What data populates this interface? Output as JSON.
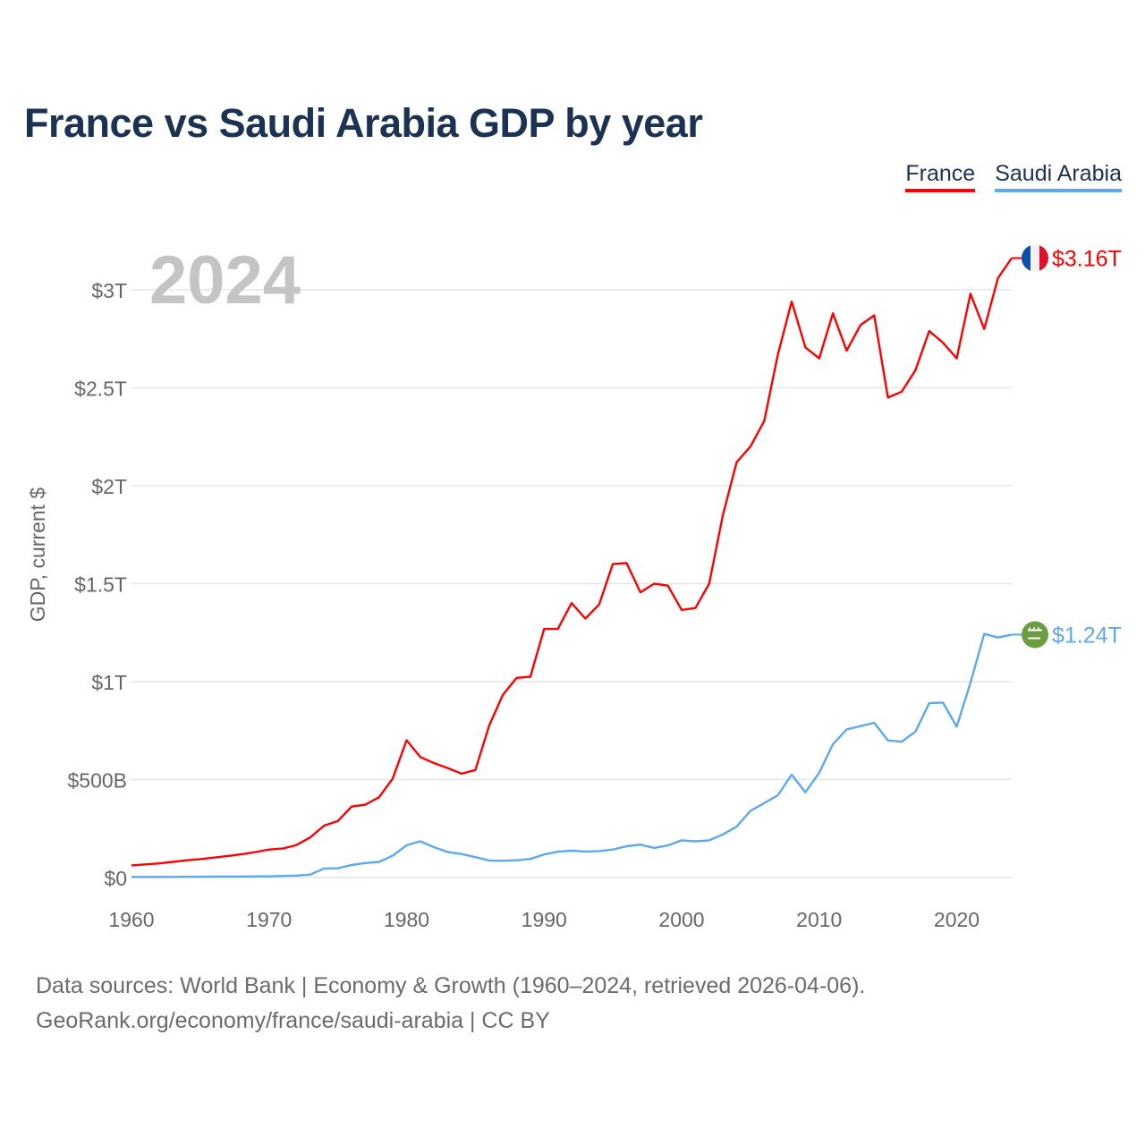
{
  "chart_data": {
    "type": "line",
    "title": "France vs Saudi Arabia GDP by year",
    "ylabel": "GDP, current $",
    "xlabel": "",
    "year_label": "2024",
    "xlim": [
      1960,
      2024
    ],
    "ylim": [
      0,
      3.3
    ],
    "y_unit": "trillion USD",
    "grid": true,
    "legend_position": "top-right",
    "x_ticks": [
      1960,
      1970,
      1980,
      1990,
      2000,
      2010,
      2020
    ],
    "x_tick_labels": [
      "1960",
      "1970",
      "1980",
      "1990",
      "2000",
      "2010",
      "2020"
    ],
    "y_ticks": [
      0,
      0.5,
      1,
      1.5,
      2,
      2.5,
      3
    ],
    "y_tick_labels": [
      "$0",
      "$500B",
      "$1T",
      "$1.5T",
      "$2T",
      "$2.5T",
      "$3T"
    ],
    "x": [
      1960,
      1961,
      1962,
      1963,
      1964,
      1965,
      1966,
      1967,
      1968,
      1969,
      1970,
      1971,
      1972,
      1973,
      1974,
      1975,
      1976,
      1977,
      1978,
      1979,
      1980,
      1981,
      1982,
      1983,
      1984,
      1985,
      1986,
      1987,
      1988,
      1989,
      1990,
      1991,
      1992,
      1993,
      1994,
      1995,
      1996,
      1997,
      1998,
      1999,
      2000,
      2001,
      2002,
      2003,
      2004,
      2005,
      2006,
      2007,
      2008,
      2009,
      2010,
      2011,
      2012,
      2013,
      2014,
      2015,
      2016,
      2017,
      2018,
      2019,
      2020,
      2021,
      2022,
      2023,
      2024
    ],
    "series": [
      {
        "name": "France",
        "color": "#ff0000",
        "end_label": "$3.16T",
        "values": [
          0.062,
          0.067,
          0.072,
          0.08,
          0.088,
          0.094,
          0.102,
          0.11,
          0.119,
          0.13,
          0.143,
          0.148,
          0.166,
          0.205,
          0.265,
          0.288,
          0.362,
          0.372,
          0.41,
          0.506,
          0.701,
          0.615,
          0.584,
          0.559,
          0.53,
          0.549,
          0.775,
          0.932,
          1.019,
          1.025,
          1.269,
          1.269,
          1.401,
          1.322,
          1.394,
          1.601,
          1.605,
          1.456,
          1.5,
          1.49,
          1.366,
          1.376,
          1.5,
          1.85,
          2.12,
          2.2,
          2.33,
          2.67,
          2.94,
          2.706,
          2.65,
          2.88,
          2.69,
          2.82,
          2.87,
          2.45,
          2.48,
          2.59,
          2.79,
          2.73,
          2.65,
          2.98,
          2.8,
          3.06,
          3.162
        ]
      },
      {
        "name": "Saudi Arabia",
        "color": "#5ea8ec",
        "end_label": "$1.24T",
        "values": [
          0.003,
          0.003,
          0.003,
          0.003,
          0.004,
          0.004,
          0.005,
          0.005,
          0.005,
          0.006,
          0.006,
          0.008,
          0.01,
          0.015,
          0.046,
          0.047,
          0.064,
          0.074,
          0.08,
          0.112,
          0.165,
          0.185,
          0.155,
          0.13,
          0.12,
          0.104,
          0.087,
          0.086,
          0.088,
          0.095,
          0.118,
          0.132,
          0.137,
          0.133,
          0.135,
          0.143,
          0.16,
          0.168,
          0.151,
          0.164,
          0.19,
          0.185,
          0.19,
          0.22,
          0.26,
          0.34,
          0.38,
          0.42,
          0.525,
          0.435,
          0.535,
          0.68,
          0.756,
          0.773,
          0.79,
          0.7,
          0.693,
          0.745,
          0.89,
          0.893,
          0.77,
          0.994,
          1.244,
          1.225,
          1.24
        ]
      }
    ]
  },
  "footer": {
    "line1": "Data sources: World Bank | Economy & Growth (1960–2024, retrieved 2026-04-06).",
    "line2": "GeoRank.org/economy/france/saudi-arabia | CC BY"
  }
}
